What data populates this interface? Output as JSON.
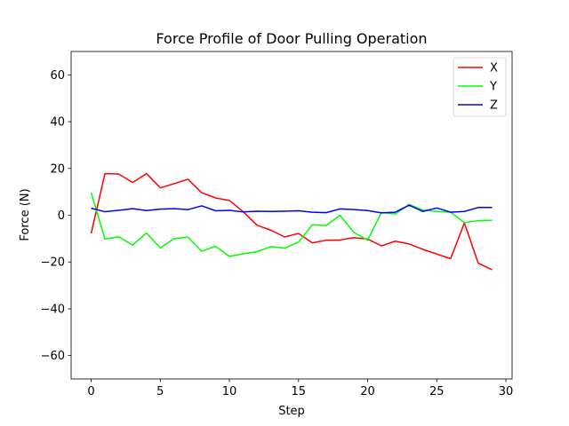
{
  "chart_data": {
    "type": "line",
    "title": "Force Profile of Door Pulling Operation",
    "xlabel": "Step",
    "ylabel": "Force (N)",
    "xlim": [
      -1.45,
      30.45
    ],
    "ylim": [
      -70,
      70
    ],
    "xticks": [
      0,
      5,
      10,
      15,
      20,
      25,
      30
    ],
    "yticks": [
      -60,
      -40,
      -20,
      0,
      20,
      40,
      60
    ],
    "grid": false,
    "legend_position": "top-right",
    "x": [
      0,
      1,
      2,
      3,
      4,
      5,
      6,
      7,
      8,
      9,
      10,
      11,
      12,
      13,
      14,
      15,
      16,
      17,
      18,
      19,
      20,
      21,
      22,
      23,
      24,
      25,
      26,
      27,
      28,
      29
    ],
    "series": [
      {
        "name": "X",
        "color": "#ff0000",
        "values": [
          -7.8,
          17.8,
          17.6,
          14.0,
          17.8,
          11.7,
          13.5,
          15.4,
          9.6,
          7.4,
          6.3,
          1.5,
          -4.3,
          -6.4,
          -9.3,
          -7.8,
          -11.8,
          -10.7,
          -10.6,
          -9.6,
          -10.2,
          -13.1,
          -11.1,
          -12.3,
          -14.6,
          -16.6,
          -18.6,
          -3.3,
          -20.5,
          -23.3
        ]
      },
      {
        "name": "Y",
        "color": "#00ff00",
        "values": [
          9.7,
          -10.2,
          -9.2,
          -12.8,
          -7.6,
          -14.0,
          -10.0,
          -9.4,
          -15.4,
          -13.3,
          -17.6,
          -16.5,
          -15.6,
          -13.4,
          -14.1,
          -11.5,
          -4.1,
          -4.4,
          0.0,
          -7.3,
          -10.7,
          1.2,
          0.5,
          4.6,
          2.2,
          1.6,
          1.3,
          -3.2,
          -2.3,
          -2.2
        ]
      },
      {
        "name": "Z",
        "color": "#0000ff",
        "values": [
          3.0,
          1.5,
          2.1,
          2.8,
          2.0,
          2.6,
          2.8,
          2.4,
          4.0,
          1.9,
          2.1,
          1.4,
          1.7,
          1.6,
          1.7,
          1.9,
          1.3,
          1.1,
          2.7,
          2.4,
          2.0,
          1.0,
          1.3,
          4.3,
          1.6,
          3.1,
          1.3,
          1.6,
          3.3,
          3.3
        ]
      }
    ]
  }
}
